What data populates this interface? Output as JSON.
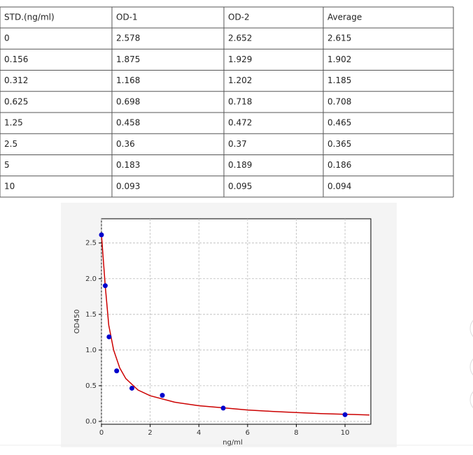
{
  "table": {
    "header": [
      "STD.(ng/ml)",
      "OD-1",
      "OD-2",
      "Average"
    ],
    "rows": [
      [
        "0",
        "2.578",
        "2.652",
        "2.615"
      ],
      [
        "0.156",
        "1.875",
        "1.929",
        "1.902"
      ],
      [
        "0.312",
        "1.168",
        "1.202",
        "1.185"
      ],
      [
        "0.625",
        "0.698",
        "0.718",
        "0.708"
      ],
      [
        "1.25",
        "0.458",
        "0.472",
        "0.465"
      ],
      [
        "2.5",
        "0.36",
        "0.37",
        "0.365"
      ],
      [
        "5",
        "0.183",
        "0.189",
        "0.186"
      ],
      [
        "10",
        "0.093",
        "0.095",
        "0.094"
      ]
    ]
  },
  "chart_data": {
    "type": "scatter",
    "xlabel": "ng/ml",
    "ylabel": "OD450",
    "xlim": [
      0,
      11.06
    ],
    "ylim": [
      -0.04,
      2.84
    ],
    "xticks": [
      0,
      2,
      4,
      6,
      8,
      10
    ],
    "yticks": [
      {
        "value": 0,
        "label": "0.0"
      },
      0.5,
      {
        "value": 1,
        "label": "1.0"
      },
      1.5,
      {
        "value": 2,
        "label": "2.0"
      },
      2.5
    ],
    "grid": true,
    "series": [
      {
        "color": "#0000cc",
        "x": [
          0,
          0.156,
          0.312,
          0.625,
          1.25,
          2.5,
          5,
          10
        ],
        "values": [
          2.615,
          1.902,
          1.185,
          0.708,
          0.465,
          0.365,
          0.186,
          0.094
        ]
      },
      {
        "color": "#cc0000",
        "x": [
          0,
          0.156,
          0.3,
          0.5,
          0.75,
          1,
          1.5,
          2,
          3,
          4,
          5,
          6,
          7,
          8,
          9,
          10,
          11
        ],
        "values": [
          2.62,
          1.9,
          1.35,
          1.0,
          0.75,
          0.6,
          0.44,
          0.36,
          0.27,
          0.22,
          0.19,
          0.16,
          0.14,
          0.125,
          0.11,
          0.1,
          0.09
        ]
      }
    ]
  }
}
